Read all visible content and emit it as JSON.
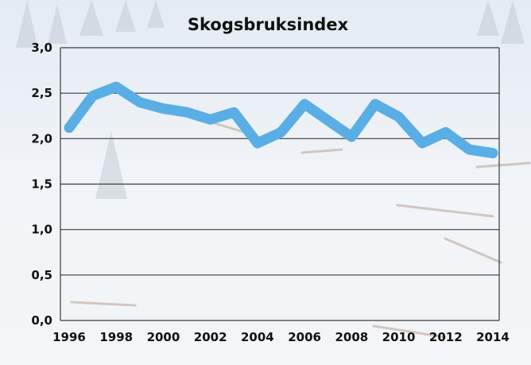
{
  "chart_data": {
    "type": "line",
    "title": "Skogsbruksindex",
    "xlabel": "",
    "ylabel": "",
    "ylim": [
      0,
      3
    ],
    "xlim": [
      1996,
      2014
    ],
    "y_ticks": [
      "0,0",
      "0,5",
      "1,0",
      "1,5",
      "2,0",
      "2,5",
      "3,0"
    ],
    "x_ticks": [
      "1996",
      "1998",
      "2000",
      "2002",
      "2004",
      "2006",
      "2008",
      "2010",
      "2012",
      "2014"
    ],
    "grid": true,
    "legend": "none",
    "series": [
      {
        "color": "#5aaee6",
        "x": [
          1996,
          1997,
          1998,
          1999,
          2000,
          2001,
          2002,
          2003,
          2004,
          2005,
          2006,
          2007,
          2008,
          2009,
          2010,
          2011,
          2012,
          2013,
          2014
        ],
        "values": [
          2.12,
          2.47,
          2.57,
          2.4,
          2.33,
          2.29,
          2.21,
          2.29,
          1.95,
          2.07,
          2.38,
          2.2,
          2.02,
          2.38,
          2.24,
          1.95,
          2.07,
          1.88,
          1.84
        ]
      }
    ]
  }
}
